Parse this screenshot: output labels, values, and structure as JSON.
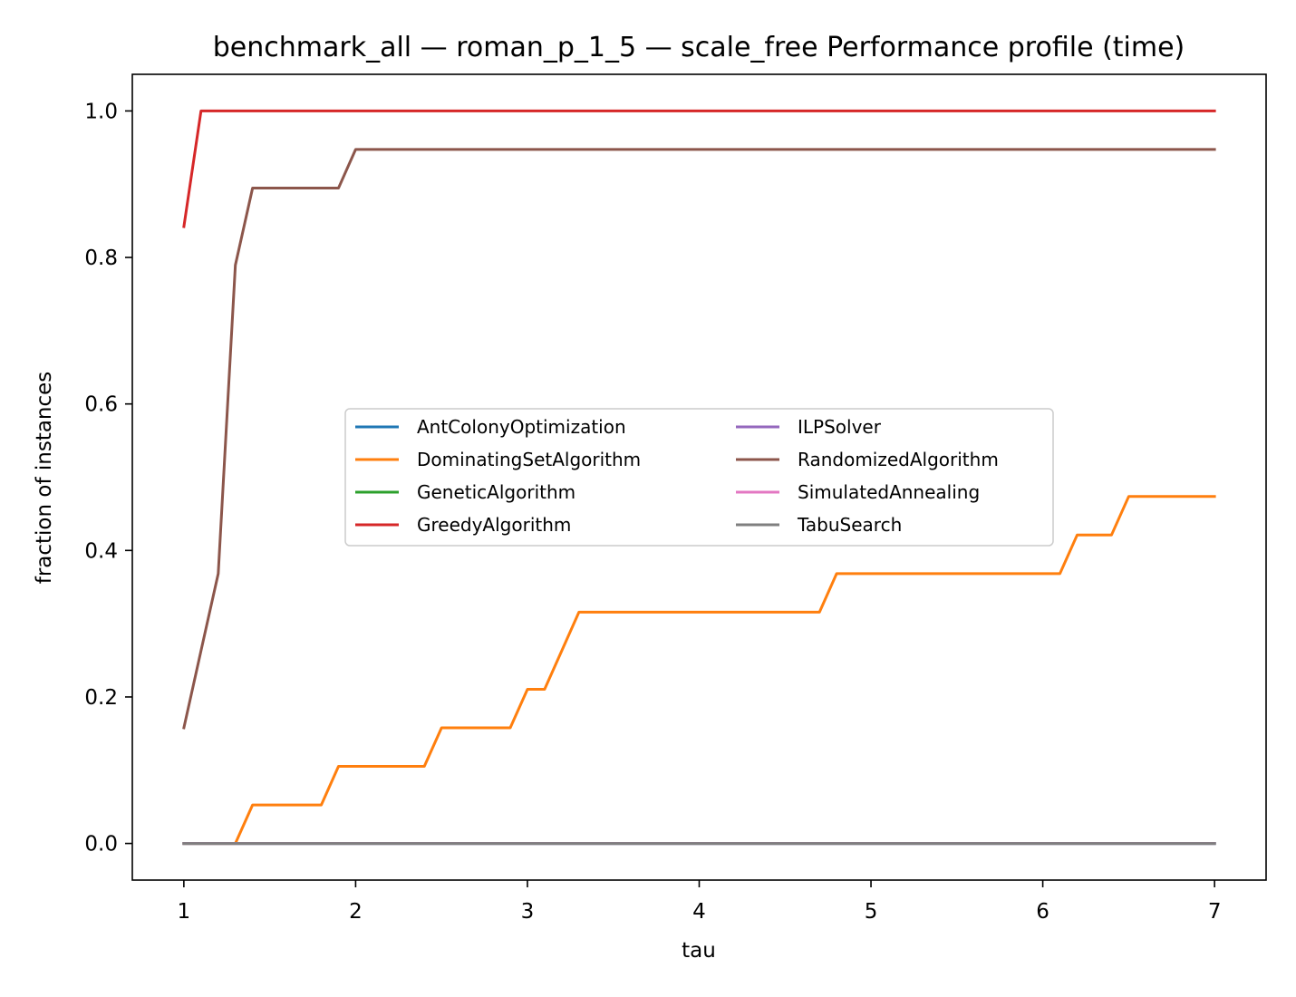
{
  "chart_data": {
    "type": "line",
    "title": "benchmark_all — roman_p_1_5 — scale_free Performance profile (time)",
    "xlabel": "tau",
    "ylabel": "fraction of instances",
    "xlim": [
      0.7,
      7.3
    ],
    "ylim": [
      -0.05,
      1.05
    ],
    "xticks": [
      1,
      2,
      3,
      4,
      5,
      6,
      7
    ],
    "yticks": [
      0.0,
      0.2,
      0.4,
      0.6,
      0.8,
      1.0
    ],
    "xtick_labels": [
      "1",
      "2",
      "3",
      "4",
      "5",
      "6",
      "7"
    ],
    "ytick_labels": [
      "0.0",
      "0.2",
      "0.4",
      "0.6",
      "0.8",
      "1.0"
    ],
    "grid": false,
    "legend": {
      "placement": "center",
      "columns": 2
    },
    "x": [
      1.0,
      1.1,
      1.2,
      1.3,
      1.4,
      1.5,
      1.6,
      1.7,
      1.8,
      1.9,
      2.0,
      2.1,
      2.2,
      2.3,
      2.4,
      2.5,
      2.6,
      2.7,
      2.8,
      2.9,
      3.0,
      3.1,
      3.2,
      3.3,
      3.4,
      3.5,
      3.6,
      3.7,
      3.8,
      3.9,
      4.0,
      4.1,
      4.2,
      4.3,
      4.4,
      4.5,
      4.6,
      4.7,
      4.8,
      4.9,
      5.0,
      5.1,
      5.2,
      5.3,
      5.4,
      5.5,
      5.6,
      5.7,
      5.8,
      5.9,
      6.0,
      6.1,
      6.2,
      6.3,
      6.4,
      6.5,
      6.6,
      6.7,
      6.8,
      6.9,
      7.0
    ],
    "series": [
      {
        "name": "AntColonyOptimization",
        "color": "#1f77b4",
        "values": [
          0,
          0,
          0,
          0,
          0,
          0,
          0,
          0,
          0,
          0,
          0,
          0,
          0,
          0,
          0,
          0,
          0,
          0,
          0,
          0,
          0,
          0,
          0,
          0,
          0,
          0,
          0,
          0,
          0,
          0,
          0,
          0,
          0,
          0,
          0,
          0,
          0,
          0,
          0,
          0,
          0,
          0,
          0,
          0,
          0,
          0,
          0,
          0,
          0,
          0,
          0,
          0,
          0,
          0,
          0,
          0,
          0,
          0,
          0,
          0,
          0
        ]
      },
      {
        "name": "DominatingSetAlgorithm",
        "color": "#ff7f0e",
        "values": [
          0,
          0,
          0,
          0,
          0.0526,
          0.0526,
          0.0526,
          0.0526,
          0.0526,
          0.1053,
          0.1053,
          0.1053,
          0.1053,
          0.1053,
          0.1053,
          0.1579,
          0.1579,
          0.1579,
          0.1579,
          0.1579,
          0.2105,
          0.2105,
          0.2632,
          0.3158,
          0.3158,
          0.3158,
          0.3158,
          0.3158,
          0.3158,
          0.3158,
          0.3158,
          0.3158,
          0.3158,
          0.3158,
          0.3158,
          0.3158,
          0.3158,
          0.3158,
          0.3684,
          0.3684,
          0.3684,
          0.3684,
          0.3684,
          0.3684,
          0.3684,
          0.3684,
          0.3684,
          0.3684,
          0.3684,
          0.3684,
          0.3684,
          0.3684,
          0.4211,
          0.4211,
          0.4211,
          0.4737,
          0.4737,
          0.4737,
          0.4737,
          0.4737,
          0.4737
        ]
      },
      {
        "name": "GeneticAlgorithm",
        "color": "#2ca02c",
        "values": [
          0,
          0,
          0,
          0,
          0,
          0,
          0,
          0,
          0,
          0,
          0,
          0,
          0,
          0,
          0,
          0,
          0,
          0,
          0,
          0,
          0,
          0,
          0,
          0,
          0,
          0,
          0,
          0,
          0,
          0,
          0,
          0,
          0,
          0,
          0,
          0,
          0,
          0,
          0,
          0,
          0,
          0,
          0,
          0,
          0,
          0,
          0,
          0,
          0,
          0,
          0,
          0,
          0,
          0,
          0,
          0,
          0,
          0,
          0,
          0,
          0
        ]
      },
      {
        "name": "GreedyAlgorithm",
        "color": "#d62728",
        "values": [
          0.8421,
          1,
          1,
          1,
          1,
          1,
          1,
          1,
          1,
          1,
          1,
          1,
          1,
          1,
          1,
          1,
          1,
          1,
          1,
          1,
          1,
          1,
          1,
          1,
          1,
          1,
          1,
          1,
          1,
          1,
          1,
          1,
          1,
          1,
          1,
          1,
          1,
          1,
          1,
          1,
          1,
          1,
          1,
          1,
          1,
          1,
          1,
          1,
          1,
          1,
          1,
          1,
          1,
          1,
          1,
          1,
          1,
          1,
          1,
          1,
          1
        ]
      },
      {
        "name": "ILPSolver",
        "color": "#9467bd",
        "values": [
          0,
          0,
          0,
          0,
          0,
          0,
          0,
          0,
          0,
          0,
          0,
          0,
          0,
          0,
          0,
          0,
          0,
          0,
          0,
          0,
          0,
          0,
          0,
          0,
          0,
          0,
          0,
          0,
          0,
          0,
          0,
          0,
          0,
          0,
          0,
          0,
          0,
          0,
          0,
          0,
          0,
          0,
          0,
          0,
          0,
          0,
          0,
          0,
          0,
          0,
          0,
          0,
          0,
          0,
          0,
          0,
          0,
          0,
          0,
          0,
          0
        ]
      },
      {
        "name": "RandomizedAlgorithm",
        "color": "#8c564b",
        "values": [
          0.1579,
          0.2632,
          0.3684,
          0.7895,
          0.8947,
          0.8947,
          0.8947,
          0.8947,
          0.8947,
          0.8947,
          0.9474,
          0.9474,
          0.9474,
          0.9474,
          0.9474,
          0.9474,
          0.9474,
          0.9474,
          0.9474,
          0.9474,
          0.9474,
          0.9474,
          0.9474,
          0.9474,
          0.9474,
          0.9474,
          0.9474,
          0.9474,
          0.9474,
          0.9474,
          0.9474,
          0.9474,
          0.9474,
          0.9474,
          0.9474,
          0.9474,
          0.9474,
          0.9474,
          0.9474,
          0.9474,
          0.9474,
          0.9474,
          0.9474,
          0.9474,
          0.9474,
          0.9474,
          0.9474,
          0.9474,
          0.9474,
          0.9474,
          0.9474,
          0.9474,
          0.9474,
          0.9474,
          0.9474,
          0.9474,
          0.9474,
          0.9474,
          0.9474,
          0.9474,
          0.9474
        ]
      },
      {
        "name": "SimulatedAnnealing",
        "color": "#e377c2",
        "values": [
          0,
          0,
          0,
          0,
          0,
          0,
          0,
          0,
          0,
          0,
          0,
          0,
          0,
          0,
          0,
          0,
          0,
          0,
          0,
          0,
          0,
          0,
          0,
          0,
          0,
          0,
          0,
          0,
          0,
          0,
          0,
          0,
          0,
          0,
          0,
          0,
          0,
          0,
          0,
          0,
          0,
          0,
          0,
          0,
          0,
          0,
          0,
          0,
          0,
          0,
          0,
          0,
          0,
          0,
          0,
          0,
          0,
          0,
          0,
          0,
          0
        ]
      },
      {
        "name": "TabuSearch",
        "color": "#7f7f7f",
        "values": [
          0,
          0,
          0,
          0,
          0,
          0,
          0,
          0,
          0,
          0,
          0,
          0,
          0,
          0,
          0,
          0,
          0,
          0,
          0,
          0,
          0,
          0,
          0,
          0,
          0,
          0,
          0,
          0,
          0,
          0,
          0,
          0,
          0,
          0,
          0,
          0,
          0,
          0,
          0,
          0,
          0,
          0,
          0,
          0,
          0,
          0,
          0,
          0,
          0,
          0,
          0,
          0,
          0,
          0,
          0,
          0,
          0,
          0,
          0,
          0,
          0
        ]
      }
    ]
  }
}
